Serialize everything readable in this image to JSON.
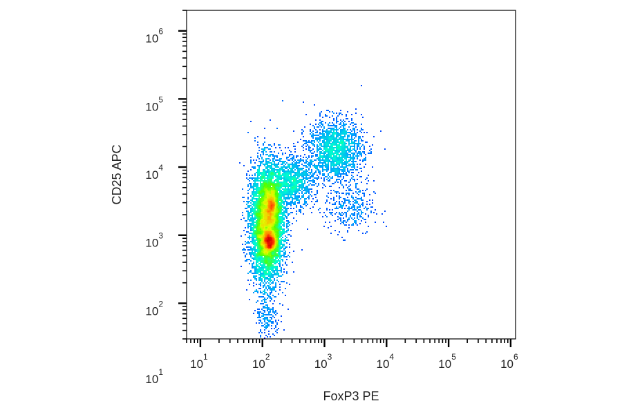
{
  "chart_data": {
    "type": "scatter",
    "subtype": "flow-cytometry-density",
    "title": "",
    "xlabel": "FoxP3 PE",
    "ylabel": "CD25 APC",
    "xscale": "log",
    "yscale": "log",
    "xlim": [
      6,
      1200000
    ],
    "ylim": [
      30,
      2000000
    ],
    "x_ticks": [
      {
        "base": "10",
        "exp": "1",
        "value": 10
      },
      {
        "base": "10",
        "exp": "2",
        "value": 100
      },
      {
        "base": "10",
        "exp": "3",
        "value": 1000
      },
      {
        "base": "10",
        "exp": "4",
        "value": 10000
      },
      {
        "base": "10",
        "exp": "5",
        "value": 100000
      },
      {
        "base": "10",
        "exp": "6",
        "value": 1000000
      }
    ],
    "y_ticks": [
      {
        "base": "10",
        "exp": "1",
        "value": 10
      },
      {
        "base": "10",
        "exp": "2",
        "value": 100
      },
      {
        "base": "10",
        "exp": "3",
        "value": 1000
      },
      {
        "base": "10",
        "exp": "4",
        "value": 10000
      },
      {
        "base": "10",
        "exp": "5",
        "value": 100000
      },
      {
        "base": "10",
        "exp": "6",
        "value": 1000000
      }
    ],
    "colormap": [
      "#0000ff",
      "#00a0ff",
      "#00ffd0",
      "#50ff00",
      "#e0ff00",
      "#ffa000",
      "#ff3000",
      "#d00000"
    ],
    "populations": [
      {
        "center_x": 120,
        "center_y": 1500,
        "log_sd_x": 0.13,
        "log_sd_y": 0.42,
        "count": 9000
      },
      {
        "center_x": 130,
        "center_y": 800,
        "log_sd_x": 0.06,
        "log_sd_y": 0.08,
        "count": 1400
      },
      {
        "center_x": 140,
        "center_y": 2800,
        "log_sd_x": 0.05,
        "log_sd_y": 0.12,
        "count": 900
      },
      {
        "center_x": 300,
        "center_y": 6000,
        "log_sd_x": 0.18,
        "log_sd_y": 0.18,
        "count": 1200
      },
      {
        "center_x": 1500,
        "center_y": 18000,
        "log_sd_x": 0.22,
        "log_sd_y": 0.22,
        "count": 1800
      },
      {
        "center_x": 2500,
        "center_y": 2500,
        "log_sd_x": 0.2,
        "log_sd_y": 0.2,
        "count": 350
      },
      {
        "center_x": 120,
        "center_y": 60,
        "log_sd_x": 0.1,
        "log_sd_y": 0.2,
        "count": 180
      }
    ]
  }
}
